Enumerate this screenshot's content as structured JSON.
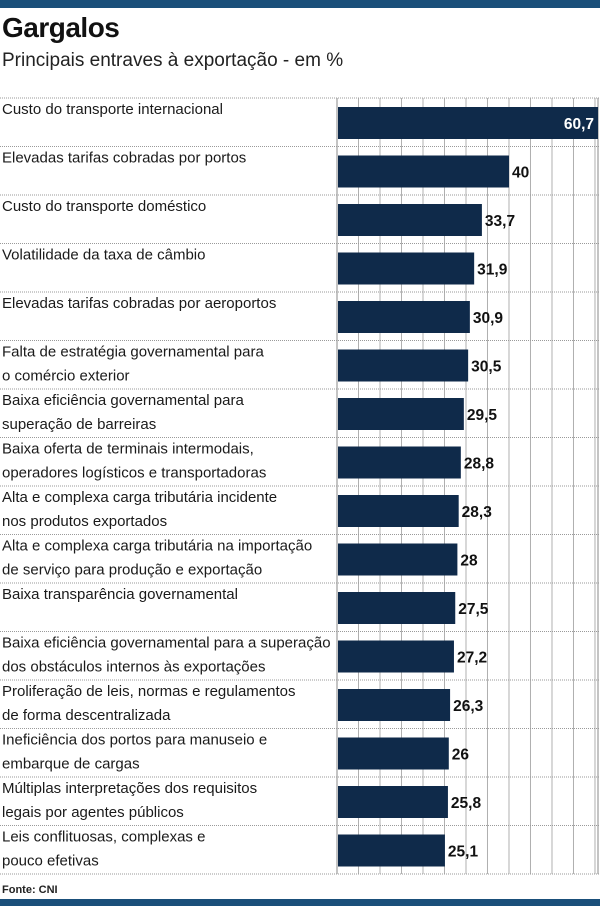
{
  "chart_data": {
    "type": "bar",
    "orientation": "horizontal",
    "title": "Gargalos",
    "subtitle": "Principais entraves à exportação - em %",
    "source": "Fonte: CNI",
    "xlim": [
      0,
      60.7
    ],
    "grid": true,
    "bar_color": "#0f2a4a",
    "categories": [
      [
        "Custo do transporte internacional"
      ],
      [
        "Elevadas tarifas cobradas por portos"
      ],
      [
        "Custo do transporte doméstico"
      ],
      [
        "Volatilidade da taxa de câmbio"
      ],
      [
        "Elevadas tarifas cobradas por aeroportos"
      ],
      [
        "Falta de estratégia governamental para",
        "o comércio exterior"
      ],
      [
        "Baixa eficiência governamental para",
        "superação de barreiras"
      ],
      [
        "Baixa oferta de terminais intermodais,",
        "operadores logísticos e transportadoras"
      ],
      [
        "Alta e complexa carga tributária incidente",
        "nos produtos exportados"
      ],
      [
        "Alta e complexa carga tributária na importação",
        "de serviço para produção e exportação"
      ],
      [
        "Baixa transparência governamental"
      ],
      [
        "Baixa eficiência governamental para a superação",
        "dos obstáculos internos às exportações"
      ],
      [
        "Proliferação de leis, normas e regulamentos",
        "de forma descentralizada"
      ],
      [
        "Ineficiência dos portos para manuseio e",
        "embarque de cargas"
      ],
      [
        "Múltiplas interpretações dos requisitos",
        "legais por agentes públicos"
      ],
      [
        "Leis conflituosas, complexas e",
        "pouco efetivas"
      ]
    ],
    "values": [
      60.7,
      40,
      33.7,
      31.9,
      30.9,
      30.5,
      29.5,
      28.8,
      28.3,
      28,
      27.5,
      27.2,
      26.3,
      26,
      25.8,
      25.1
    ],
    "value_labels": [
      "60,7",
      "40",
      "33,7",
      "31,9",
      "30,9",
      "30,5",
      "29,5",
      "28,8",
      "28,3",
      "28",
      "27,5",
      "27,2",
      "26,3",
      "26",
      "25,8",
      "25,1"
    ]
  }
}
